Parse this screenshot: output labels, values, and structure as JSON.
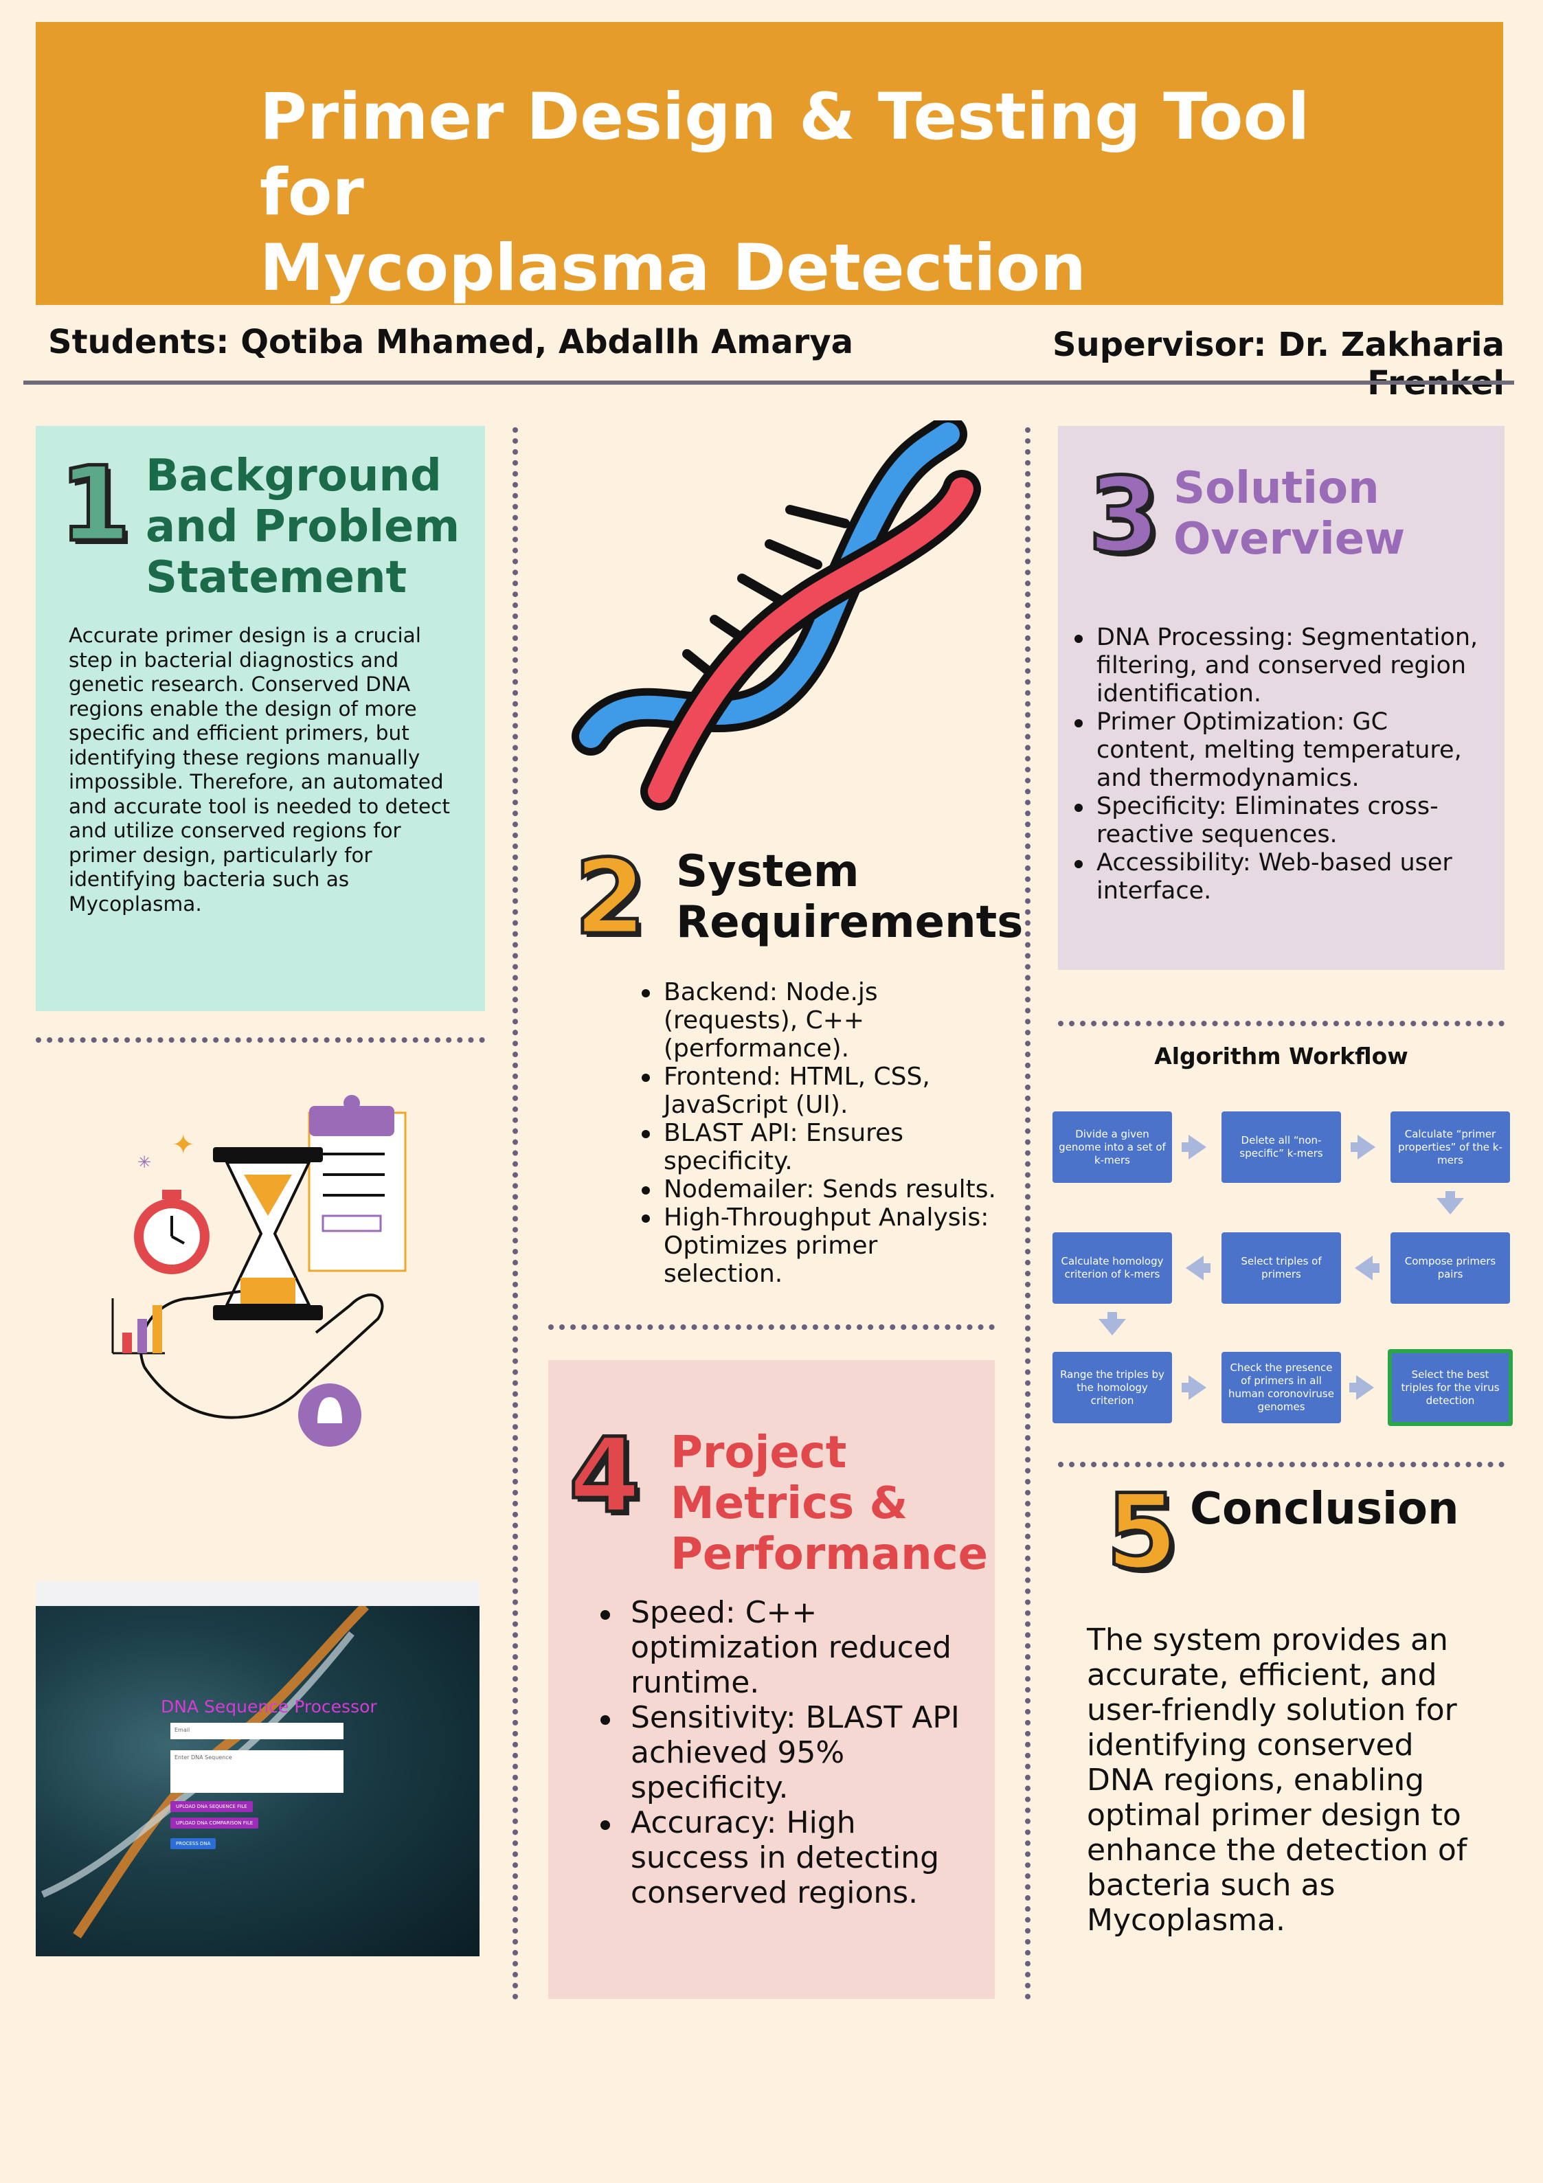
{
  "header": {
    "title_line1": "Primer Design & Testing Tool for",
    "title_line2": "Mycoplasma Detection",
    "students": "Students: Qotiba Mhamed, Abdallh Amarya",
    "supervisor": "Supervisor: Dr. Zakharia Frenkel"
  },
  "section1": {
    "number": "1",
    "title": "Background and Problem Statement",
    "body": "Accurate primer design is a crucial step in bacterial diagnostics and genetic research. Conserved DNA regions enable the design of more specific and efficient primers, but identifying these regions manually impossible. Therefore, an automated and accurate tool is needed to detect and utilize conserved regions for primer design, particularly for identifying bacteria such as Mycoplasma."
  },
  "section2": {
    "number": "2",
    "title": "System Requirements",
    "items": [
      "Backend: Node.js (requests), C++ (performance).",
      "Frontend: HTML, CSS, JavaScript (UI).",
      "BLAST API: Ensures specificity.",
      "Nodemailer: Sends results.",
      "High-Throughput Analysis: Optimizes primer selection."
    ]
  },
  "section3": {
    "number": "3",
    "title": "Solution Overview",
    "items": [
      "DNA Processing: Segmentation, filtering, and conserved region identification.",
      "Primer Optimization: GC content, melting temperature, and thermodynamics.",
      "Specificity: Eliminates cross-reactive sequences.",
      "Accessibility: Web-based user interface."
    ]
  },
  "workflow": {
    "title": "Algorithm Workflow",
    "steps": [
      "Divide a given genome into a set of k-mers",
      "Delete all “non-specific” k-mers",
      "Calculate “primer properties” of the k-mers",
      "Compose primers pairs",
      "Select triples of primers",
      "Calculate homology criterion of k-mers",
      "Range the triples by the homology criterion",
      "Check the presence of primers in all human coronoviruse genomes",
      "Select the best triples for the virus detection"
    ]
  },
  "section4": {
    "number": "4",
    "title": "Project Metrics & Performance",
    "items": [
      "Speed: C++ optimization reduced runtime.",
      "Sensitivity: BLAST API achieved 95% specificity.",
      "Accuracy: High success in detecting conserved regions."
    ]
  },
  "section5": {
    "number": "5",
    "title": "Conclusion",
    "body": "The system provides an accurate, efficient, and user-friendly solution for identifying conserved DNA regions, enabling optimal primer design to enhance the detection of bacteria such as Mycoplasma."
  },
  "screenshot": {
    "app_title": "DNA Sequence Processor",
    "email_placeholder": "Email",
    "sequence_placeholder": "Enter DNA Sequence",
    "upload_seq": "UPLOAD DNA SEQUENCE FILE",
    "upload_cmp": "UPLOAD DNA COMPARISON FILE",
    "process": "PROCESS DNA"
  },
  "colors": {
    "header": "#e69c2a",
    "section1_bg": "#c5ece0",
    "section3_bg": "#e6d9e1",
    "section4_bg": "#f5d8d1",
    "workflow_box": "#4a73c9",
    "highlight": "#2aa548"
  }
}
